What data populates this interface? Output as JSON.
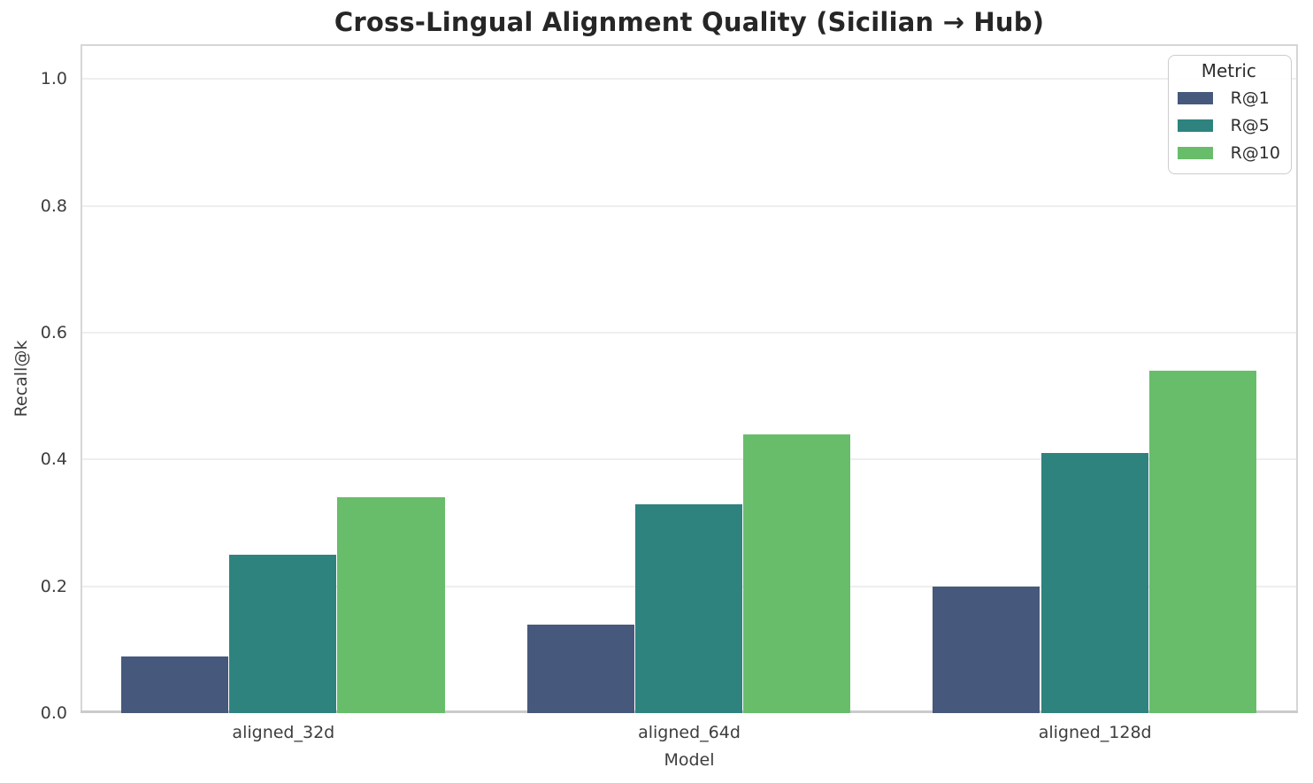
{
  "chart_data": {
    "type": "bar",
    "title": "Cross-Lingual Alignment Quality (Sicilian → Hub)",
    "xlabel": "Model",
    "ylabel": "Recall@k",
    "categories": [
      "aligned_32d",
      "aligned_64d",
      "aligned_128d"
    ],
    "series": [
      {
        "name": "R@1",
        "color": "#46597c",
        "values": [
          0.09,
          0.14,
          0.2
        ]
      },
      {
        "name": "R@5",
        "color": "#2e837f",
        "values": [
          0.25,
          0.33,
          0.41
        ]
      },
      {
        "name": "R@10",
        "color": "#68bd6a",
        "values": [
          0.34,
          0.44,
          0.54
        ]
      }
    ],
    "legend": {
      "title": "Metric",
      "position": "upper-right"
    },
    "ylim": [
      0,
      1.055
    ],
    "yticks": [
      0.0,
      0.2,
      0.4,
      0.6,
      0.8,
      1.0
    ],
    "grid": "horizontal-only",
    "group_width_ratio": 0.8,
    "colors": {
      "grid": "#eeeeee",
      "spine": "#d6d6d6",
      "bottom_spine": "#cbcbcb",
      "text": "#3d3d3d",
      "title_text": "#262626",
      "background": "#ffffff"
    }
  }
}
